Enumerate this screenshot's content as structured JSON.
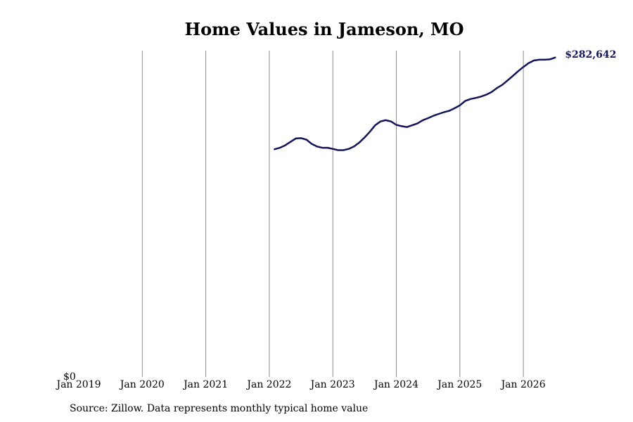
{
  "chart_data": {
    "type": "line",
    "title": "Home Values in Jameson, MO",
    "xlabel": "",
    "ylabel": "",
    "x_ticks": [
      "Jan 2019",
      "Jan 2020",
      "Jan 2021",
      "Jan 2022",
      "Jan 2023",
      "Jan 2024",
      "Jan 2025",
      "Jan 2026"
    ],
    "y_ticks": [
      "$0"
    ],
    "ylim": [
      0,
      285000
    ],
    "grid": "vertical",
    "line_color": "#14145a",
    "last_value_label": "$282,642",
    "series": [
      {
        "x": [
          "2022-02",
          "2022-03",
          "2022-04",
          "2022-05",
          "2022-06",
          "2022-07",
          "2022-08",
          "2022-09",
          "2022-10",
          "2022-11",
          "2022-12",
          "2023-01",
          "2023-02",
          "2023-03",
          "2023-04",
          "2023-05",
          "2023-06",
          "2023-07",
          "2023-08",
          "2023-09",
          "2023-10",
          "2023-11",
          "2023-12",
          "2024-01",
          "2024-02",
          "2024-03",
          "2024-04",
          "2024-05",
          "2024-06",
          "2024-07",
          "2024-08",
          "2024-09",
          "2024-10",
          "2024-11",
          "2024-12",
          "2025-01",
          "2025-02",
          "2025-03",
          "2025-04",
          "2025-05",
          "2025-06",
          "2025-07",
          "2025-08",
          "2025-09",
          "2025-10",
          "2025-11",
          "2025-12",
          "2026-01",
          "2026-02",
          "2026-03",
          "2026-04",
          "2026-05",
          "2026-06",
          "2026-07"
        ],
        "y": [
          201500,
          202800,
          205000,
          208000,
          211000,
          211300,
          210000,
          206300,
          204000,
          202800,
          202800,
          201800,
          200700,
          200700,
          201800,
          204000,
          207400,
          211900,
          217000,
          222700,
          226100,
          227200,
          226100,
          223100,
          221900,
          221100,
          222700,
          224400,
          227200,
          229000,
          231100,
          232700,
          234300,
          235500,
          237800,
          240300,
          244200,
          245900,
          246900,
          248100,
          249800,
          252100,
          255600,
          258400,
          262300,
          266300,
          270500,
          274300,
          277700,
          280000,
          280700,
          280700,
          281000,
          282642
        ]
      }
    ]
  },
  "footer": {
    "source": "Source: Zillow. Data represents monthly typical home value"
  }
}
